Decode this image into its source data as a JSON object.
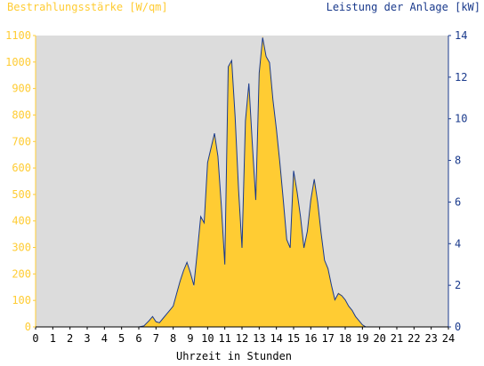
{
  "chart_data": {
    "type": "area",
    "y_left_label": "Bestrahlungsstärke [W/qm]",
    "y_right_label": "Leistung der Anlage [kW]",
    "xlabel": "Uhrzeit in Stunden",
    "x_ticks": [
      "0",
      "1",
      "2",
      "3",
      "4",
      "5",
      "6",
      "7",
      "8",
      "9",
      "10",
      "11",
      "12",
      "13",
      "14",
      "15",
      "16",
      "17",
      "18",
      "19",
      "20",
      "21",
      "22",
      "23",
      "24"
    ],
    "y_left_ticks": [
      "0",
      "100",
      "200",
      "300",
      "400",
      "500",
      "600",
      "700",
      "800",
      "900",
      "1000",
      "1100"
    ],
    "y_right_ticks": [
      "0",
      "2",
      "4",
      "6",
      "8",
      "10",
      "12",
      "14"
    ],
    "xlim": [
      0,
      24
    ],
    "ylim_left": [
      0,
      1100
    ],
    "ylim_right": [
      0,
      14
    ],
    "colors": {
      "irradiance": "#ffcc33",
      "power": "#1a3a8c",
      "left_axis_text": "#ffcc33",
      "right_axis_text": "#1a3a8c",
      "plot_bg": "#dcdcdc"
    },
    "series": [
      {
        "name": "Bestrahlungsstärke [W/qm]",
        "axis": "left",
        "x": [
          0,
          6,
          6.3,
          6.6,
          6.8,
          7.0,
          7.2,
          7.4,
          7.6,
          7.8,
          8.0,
          8.2,
          8.4,
          8.6,
          8.8,
          9.0,
          9.2,
          9.4,
          9.6,
          9.8,
          10.0,
          10.2,
          10.4,
          10.6,
          10.8,
          11.0,
          11.2,
          11.4,
          11.6,
          11.8,
          12.0,
          12.2,
          12.4,
          12.6,
          12.8,
          13.0,
          13.2,
          13.4,
          13.6,
          13.8,
          14.0,
          14.2,
          14.4,
          14.6,
          14.8,
          15.0,
          15.2,
          15.4,
          15.6,
          15.8,
          16.0,
          16.2,
          16.4,
          16.6,
          16.8,
          17.0,
          17.2,
          17.4,
          17.6,
          17.8,
          18.0,
          18.2,
          18.4,
          18.6,
          18.8,
          19.0,
          19.2,
          19.4,
          24
        ],
        "values": [
          0,
          0,
          5,
          25,
          40,
          20,
          15,
          30,
          45,
          60,
          80,
          120,
          170,
          210,
          240,
          200,
          150,
          280,
          420,
          390,
          620,
          680,
          730,
          640,
          450,
          230,
          980,
          1010,
          790,
          520,
          300,
          780,
          920,
          690,
          480,
          960,
          1100,
          1020,
          1000,
          860,
          750,
          620,
          480,
          330,
          300,
          590,
          510,
          420,
          300,
          360,
          480,
          560,
          470,
          350,
          250,
          220,
          160,
          100,
          130,
          120,
          100,
          80,
          60,
          40,
          25,
          10,
          0,
          0,
          0
        ]
      },
      {
        "name": "Leistung der Anlage [kW]",
        "axis": "right",
        "x": [
          0,
          6,
          6.3,
          6.6,
          6.8,
          7.0,
          7.2,
          7.4,
          7.6,
          7.8,
          8.0,
          8.2,
          8.4,
          8.6,
          8.8,
          9.0,
          9.2,
          9.4,
          9.6,
          9.8,
          10.0,
          10.2,
          10.4,
          10.6,
          10.8,
          11.0,
          11.2,
          11.4,
          11.6,
          11.8,
          12.0,
          12.2,
          12.4,
          12.6,
          12.8,
          13.0,
          13.2,
          13.4,
          13.6,
          13.8,
          14.0,
          14.2,
          14.4,
          14.6,
          14.8,
          15.0,
          15.2,
          15.4,
          15.6,
          15.8,
          16.0,
          16.2,
          16.4,
          16.6,
          16.8,
          17.0,
          17.2,
          17.4,
          17.6,
          17.8,
          18.0,
          18.2,
          18.4,
          18.6,
          18.8,
          19.0,
          19.2,
          19.4,
          24
        ],
        "values": [
          0,
          0,
          0.05,
          0.3,
          0.5,
          0.25,
          0.2,
          0.4,
          0.6,
          0.8,
          1.0,
          1.6,
          2.2,
          2.7,
          3.1,
          2.6,
          2.0,
          3.6,
          5.3,
          5.0,
          7.9,
          8.6,
          9.3,
          8.2,
          5.8,
          3.0,
          12.5,
          12.8,
          10.1,
          6.6,
          3.8,
          9.9,
          11.7,
          8.8,
          6.1,
          12.2,
          13.9,
          13.0,
          12.7,
          10.9,
          9.5,
          7.9,
          6.1,
          4.2,
          3.8,
          7.5,
          6.5,
          5.3,
          3.8,
          4.6,
          6.1,
          7.1,
          6.0,
          4.5,
          3.2,
          2.8,
          2.0,
          1.3,
          1.6,
          1.5,
          1.3,
          1.0,
          0.8,
          0.5,
          0.3,
          0.1,
          0,
          0,
          0
        ]
      }
    ]
  }
}
